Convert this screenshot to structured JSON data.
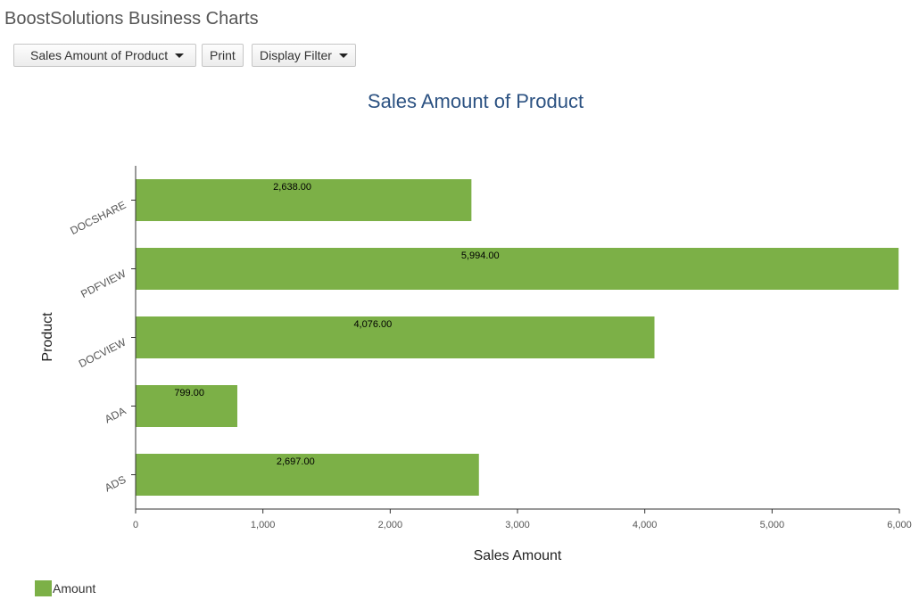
{
  "app": {
    "title": "BoostSolutions Business Charts"
  },
  "toolbar": {
    "report_select_label": "Sales Amount of Product",
    "print_label": "Print",
    "filter_label": "Display Filter"
  },
  "colors": {
    "bar": "#7cb047",
    "title": "#2c5282",
    "axis": "#333333"
  },
  "chart_data": {
    "type": "bar",
    "orientation": "horizontal",
    "title": "Sales Amount of Product",
    "xlabel": "Sales Amount",
    "ylabel": "Product",
    "categories": [
      "DOCSHARE",
      "PDFVIEW",
      "DOCVIEW",
      "ADA",
      "ADS"
    ],
    "series": [
      {
        "name": "Amount",
        "values": [
          2638,
          5994,
          4076,
          799,
          2697
        ],
        "labels": [
          "2,638.00",
          "5,994.00",
          "4,076.00",
          "799.00",
          "2,697.00"
        ]
      }
    ],
    "xlim": [
      0,
      6000
    ],
    "xticks": [
      0,
      1000,
      2000,
      3000,
      4000,
      5000,
      6000
    ],
    "xtick_labels": [
      "0",
      "1,000",
      "2,000",
      "3,000",
      "4,000",
      "5,000",
      "6,000"
    ],
    "grid": false,
    "legend": "bottom-left"
  }
}
